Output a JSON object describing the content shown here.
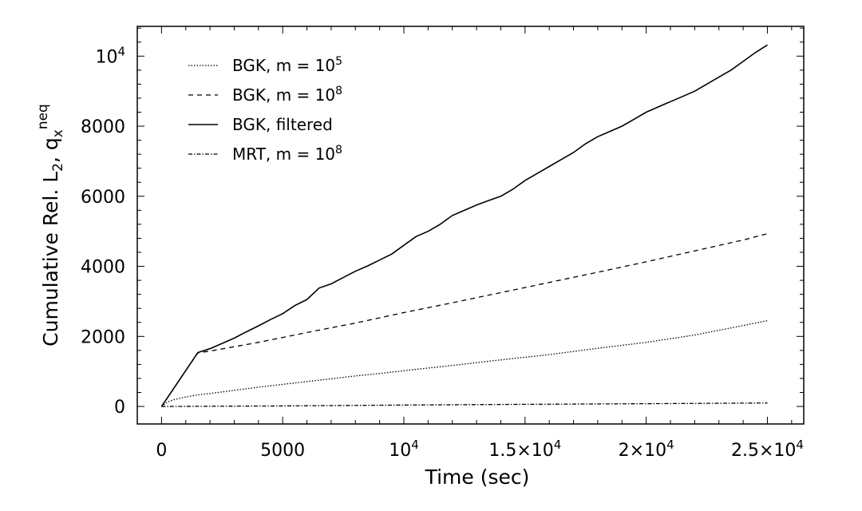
{
  "chart_data": {
    "type": "line",
    "xlabel": "Time (sec)",
    "ylabel": {
      "main": "Cumulative Rel. L",
      "sub1": "2",
      "mid": ", q",
      "sub2": "x",
      "sup": "neq"
    },
    "xlim": [
      -1000,
      26500
    ],
    "ylim": [
      -500,
      10850
    ],
    "x_ticks": [
      {
        "value": 0,
        "label": "0"
      },
      {
        "value": 5000,
        "label": "5000"
      },
      {
        "value": 10000,
        "label": "10",
        "exp": "4"
      },
      {
        "value": 15000,
        "label": "1.5×10",
        "exp": "4"
      },
      {
        "value": 20000,
        "label": "2×10",
        "exp": "4"
      },
      {
        "value": 25000,
        "label": "2.5×10",
        "exp": "4"
      }
    ],
    "y_ticks": [
      {
        "value": 0,
        "label": "0"
      },
      {
        "value": 2000,
        "label": "2000"
      },
      {
        "value": 4000,
        "label": "4000"
      },
      {
        "value": 6000,
        "label": "6000"
      },
      {
        "value": 8000,
        "label": "8000"
      },
      {
        "value": 10000,
        "label": "10",
        "exp": "4"
      }
    ],
    "grid": false,
    "legend_position": "top-left",
    "series": [
      {
        "name": "BGK, m = 10",
        "name_sup": "5",
        "style": "dotted",
        "x": [
          0,
          250,
          500,
          1000,
          1500,
          2000,
          3000,
          4000,
          5000,
          6000,
          7000,
          8000,
          9000,
          10000,
          12000,
          14000,
          16000,
          18000,
          20000,
          22000,
          24000,
          25000
        ],
        "y": [
          0,
          130,
          190,
          270,
          330,
          370,
          460,
          550,
          630,
          710,
          790,
          870,
          940,
          1020,
          1170,
          1330,
          1480,
          1660,
          1830,
          2040,
          2310,
          2450
        ]
      },
      {
        "name": "BGK, m = 10",
        "name_sup": "8",
        "style": "dashed",
        "x": [
          0,
          1500,
          2000,
          4000,
          6000,
          8000,
          10000,
          12000,
          14000,
          16000,
          18000,
          20000,
          22000,
          24000,
          25000
        ],
        "y": [
          0,
          1530,
          1580,
          1830,
          2110,
          2380,
          2680,
          2960,
          3250,
          3540,
          3830,
          4130,
          4440,
          4750,
          4930
        ]
      },
      {
        "name": "BGK, filtered",
        "style": "solid",
        "x": [
          0,
          1500,
          2000,
          2500,
          3000,
          3500,
          4000,
          4500,
          5000,
          5500,
          6000,
          6500,
          7000,
          7500,
          8000,
          8500,
          9000,
          9500,
          10000,
          10500,
          11000,
          11500,
          12000,
          12500,
          13000,
          13500,
          14000,
          14500,
          15000,
          15500,
          16000,
          16500,
          17000,
          17500,
          18000,
          18500,
          19000,
          19500,
          20000,
          20500,
          21000,
          21500,
          22000,
          22500,
          23000,
          23500,
          24000,
          24500,
          25000
        ],
        "y": [
          0,
          1540,
          1650,
          1800,
          1950,
          2130,
          2300,
          2480,
          2650,
          2880,
          3050,
          3380,
          3500,
          3680,
          3860,
          4010,
          4180,
          4350,
          4600,
          4850,
          5000,
          5200,
          5450,
          5600,
          5750,
          5880,
          6000,
          6200,
          6450,
          6650,
          6850,
          7050,
          7250,
          7500,
          7700,
          7850,
          8000,
          8200,
          8400,
          8550,
          8700,
          8850,
          9000,
          9200,
          9400,
          9600,
          9850,
          10100,
          10320
        ]
      },
      {
        "name": "MRT, m = 10",
        "name_sup": "8",
        "style": "dash-dot",
        "x": [
          0,
          2000,
          5000,
          10000,
          15000,
          20000,
          25000
        ],
        "y": [
          0,
          5,
          15,
          40,
          60,
          80,
          100
        ]
      }
    ]
  }
}
